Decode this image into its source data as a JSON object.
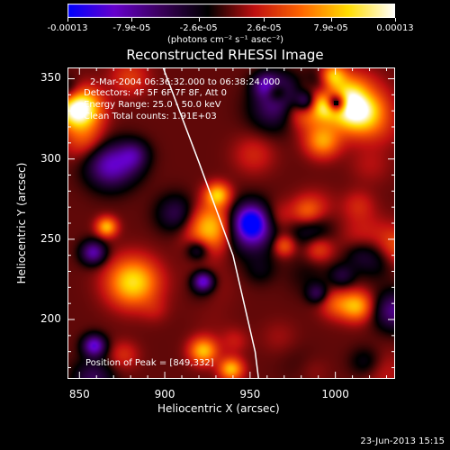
{
  "chart_data": {
    "type": "heatmap",
    "title": "Reconstructed RHESSI Image",
    "xlabel": "Heliocentric X (arcsec)",
    "ylabel": "Heliocentric Y (arcsec)",
    "xlim": [
      843,
      1035
    ],
    "ylim": [
      163,
      357
    ],
    "x_ticks": [
      850,
      900,
      950,
      1000
    ],
    "y_ticks": [
      200,
      250,
      300,
      350
    ],
    "colorbar": {
      "range": [
        -0.00013,
        0.00013
      ],
      "ticks": [
        -0.00013,
        -7.9e-05,
        -2.6e-05,
        2.6e-05,
        7.9e-05,
        0.00013
      ],
      "tick_labels": [
        "-0.00013",
        "-7.9e-05",
        "-2.6e-05",
        "2.6e-05",
        "7.9e-05",
        "0.00013"
      ],
      "units": "(photons cm⁻² s⁻¹ asec⁻²)",
      "colors": [
        "#0000ff",
        "#6600cc",
        "#3a005a",
        "#000000",
        "#c01010",
        "#ff6600",
        "#ffdd00",
        "#ffffff"
      ]
    },
    "annotations": [
      "2-Mar-2004 06:36:32.000 to 06:38:24.000",
      "Detectors: 4F 5F 6F 7F 8F, Att 0",
      "Energy Range: 25.0 - 50.0 keV",
      "Clean   Total counts: 1.91E+03",
      "Position of Peak = [849,332]"
    ],
    "peak": [
      849,
      332
    ],
    "limb_curve": {
      "points": [
        [
          899,
          357
        ],
        [
          920,
          298
        ],
        [
          940,
          240
        ],
        [
          953,
          180
        ],
        [
          955,
          163
        ]
      ]
    }
  },
  "timestamp": "23-Jun-2013 15:15"
}
